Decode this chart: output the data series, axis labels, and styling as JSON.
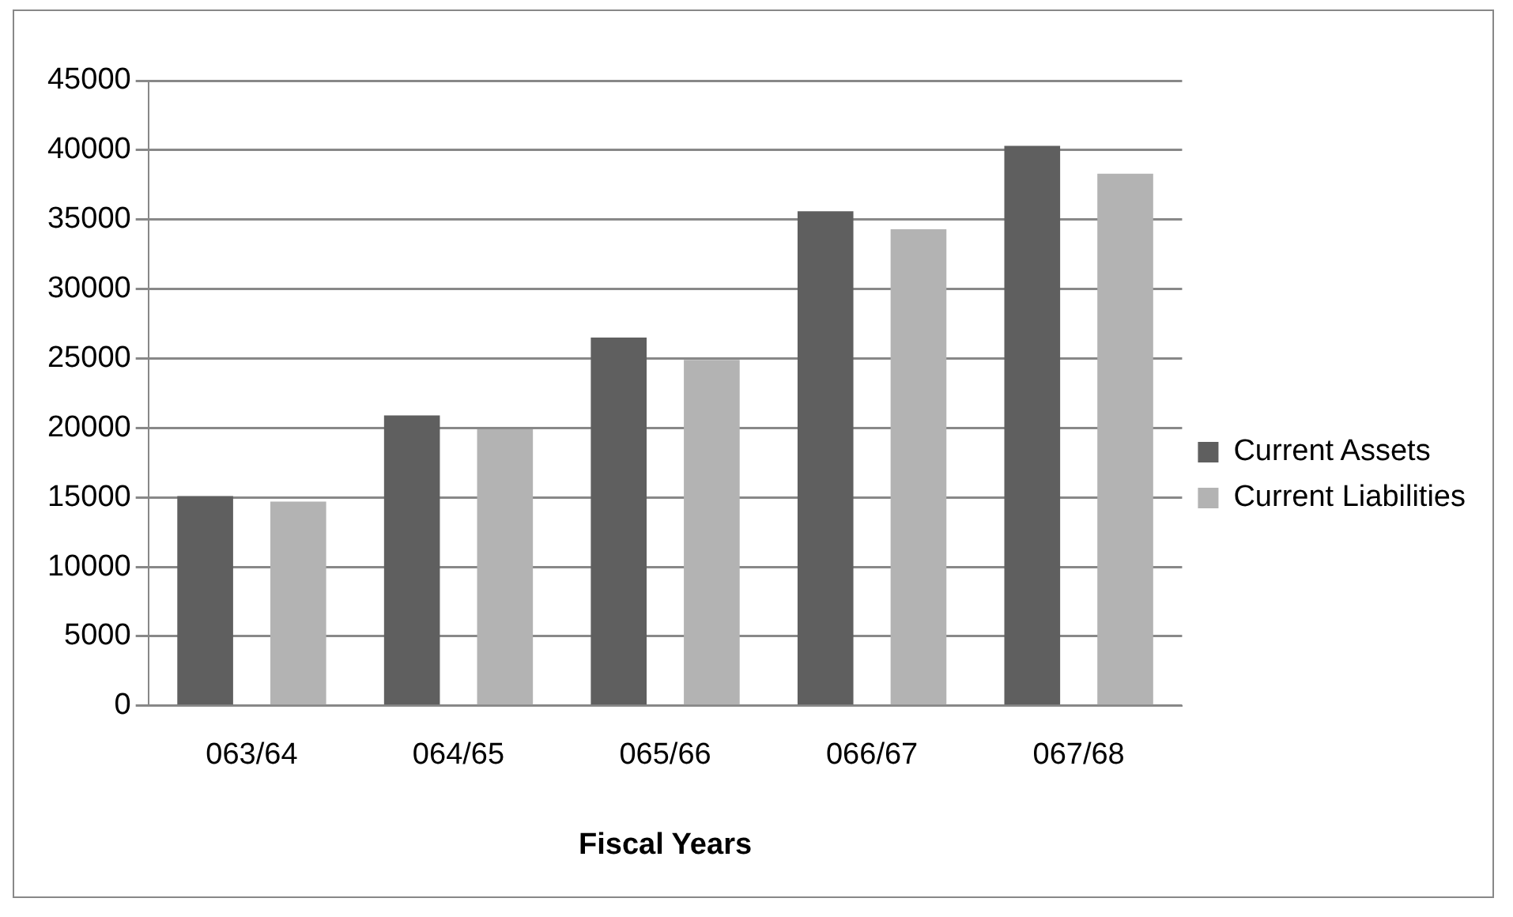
{
  "chart_data": {
    "type": "bar",
    "xlabel": "Fiscal Years",
    "categories": [
      "063/64",
      "064/65",
      "065/66",
      "066/67",
      "067/68"
    ],
    "series": [
      {
        "name": "Current Assets",
        "color": "#5f5f5f",
        "values": [
          15100,
          20900,
          26500,
          35600,
          40300
        ]
      },
      {
        "name": "Current Liabilities",
        "color": "#b3b3b3",
        "values": [
          14700,
          19900,
          24900,
          34300,
          38300
        ]
      }
    ],
    "ylim": [
      0,
      45000
    ],
    "yticks": [
      0,
      5000,
      10000,
      15000,
      20000,
      25000,
      30000,
      35000,
      40000,
      45000
    ],
    "grid": "y",
    "legend": "right"
  }
}
